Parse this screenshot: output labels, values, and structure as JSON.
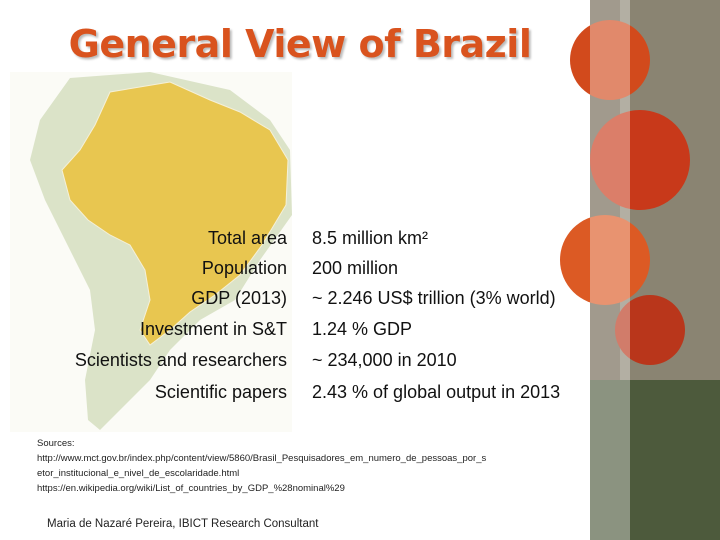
{
  "header": {
    "title": "General View of Brazil"
  },
  "table": {
    "rows": [
      [
        "Total area",
        "8.5 million km²"
      ],
      [
        "Population",
        "200 million"
      ],
      [
        "GDP (2013)",
        "~ 2.246 US$ trillion (3% world)"
      ],
      [
        "Investment in S&T",
        "1.24 %  GDP"
      ],
      [
        "Scientists and researchers",
        "~ 234,000  in 2010"
      ],
      [
        "Scientific papers",
        "2.43 % of global output in 2013"
      ]
    ]
  },
  "sources": {
    "lines": [
      "Sources:",
      "http://www.mct.gov.br/index.php/content/view/5860/Brasil_Pesquisadores_em_numero_de_pessoas_por_s",
      "etor_institucional_e_nivel_de_escolaridade.html",
      "https://en.wikipedia.org/wiki/List_of_countries_by_GDP_%28nominal%29"
    ]
  },
  "footer": {
    "author": "Maria de Nazaré Pereira, IBICT Research Consultant"
  }
}
